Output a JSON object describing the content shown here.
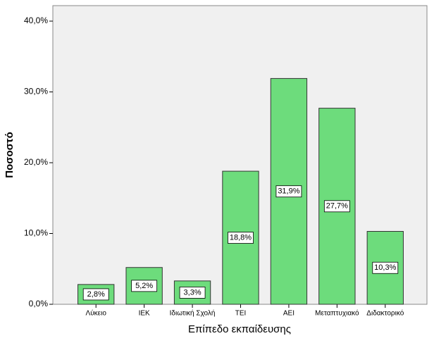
{
  "chart_data": {
    "type": "bar",
    "categories": [
      "Λύκειο",
      "ΙΕΚ",
      "Ιδιωτική Σχολή",
      "ΤΕΙ",
      "ΑΕΙ",
      "Μεταπτυχιακό",
      "Διδακτορικό"
    ],
    "values": [
      2.8,
      5.2,
      3.3,
      18.8,
      31.9,
      27.7,
      10.3
    ],
    "value_labels": [
      "2,8%",
      "5,2%",
      "3,3%",
      "18,8%",
      "31,9%",
      "27,7%",
      "10,3%"
    ],
    "color": "#6ddc7c",
    "ylim": [
      0,
      40
    ],
    "yticks": [
      {
        "value": 0,
        "label": "0,0%"
      },
      {
        "value": 10,
        "label": "10,0%"
      },
      {
        "value": 20,
        "label": "20,0%"
      },
      {
        "value": 30,
        "label": "30,0%"
      },
      {
        "value": 40,
        "label": "40,0%"
      }
    ],
    "x_label": "Επίπεδο εκπαίδευσης",
    "y_label": "Ποσοστό"
  }
}
